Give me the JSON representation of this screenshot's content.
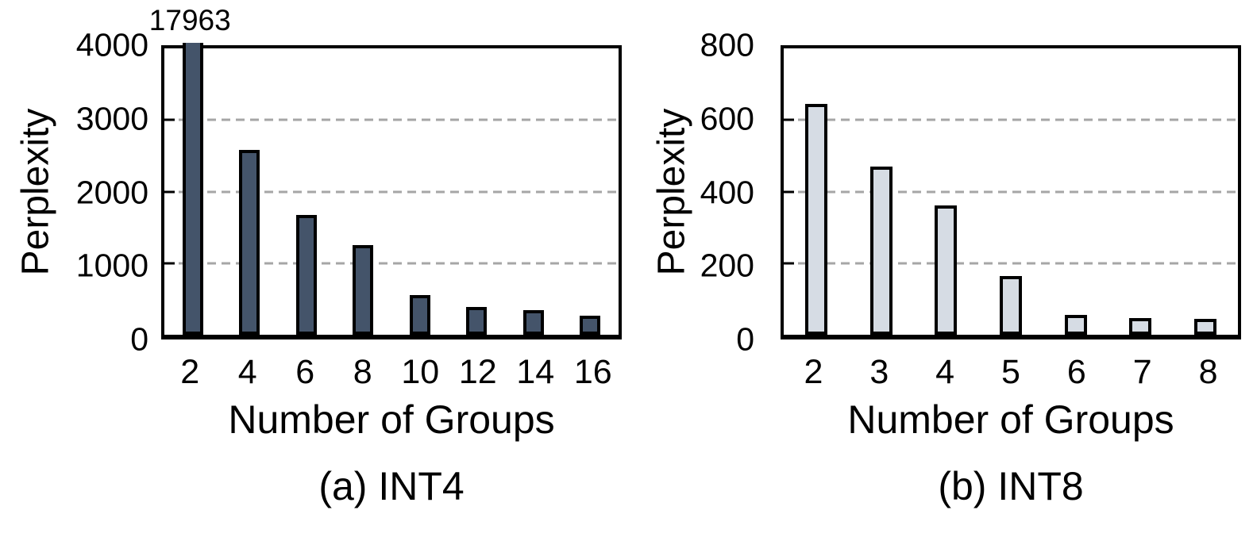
{
  "figure": {
    "background": "#FFFFFF",
    "grid_color": "#A6A6A6",
    "axis_color": "#000000"
  },
  "chart_data": [
    {
      "type": "bar",
      "caption": "(a) INT4",
      "ylabel": "Perplexity",
      "xlabel": "Number of Groups",
      "categories": [
        "2",
        "4",
        "6",
        "8",
        "10",
        "12",
        "14",
        "16"
      ],
      "values": [
        17963,
        2585,
        1670,
        1250,
        550,
        390,
        345,
        270
      ],
      "data_labels": [
        "17963",
        "",
        "",
        "",
        "",
        "",
        "",
        ""
      ],
      "ylim": [
        0,
        4000
      ],
      "yticks": [
        0,
        1000,
        2000,
        3000,
        4000
      ],
      "gridlines": [
        1000,
        2000,
        3000
      ],
      "bar_fill": "#44546A",
      "bar_stroke": "#000000",
      "grid_on": true,
      "legend": "none"
    },
    {
      "type": "bar",
      "caption": "(b) INT8",
      "ylabel": "Perplexity",
      "xlabel": "Number of Groups",
      "categories": [
        "2",
        "3",
        "4",
        "5",
        "6",
        "7",
        "8"
      ],
      "values": [
        645,
        470,
        362,
        165,
        55,
        47,
        45
      ],
      "data_labels": [
        "",
        "",
        "",
        "",
        "",
        "",
        ""
      ],
      "ylim": [
        0,
        800
      ],
      "yticks": [
        0,
        200,
        400,
        600,
        800
      ],
      "gridlines": [
        200,
        400,
        600
      ],
      "bar_fill": "#D6DCE4",
      "bar_stroke": "#000000",
      "grid_on": true,
      "legend": "none"
    }
  ]
}
